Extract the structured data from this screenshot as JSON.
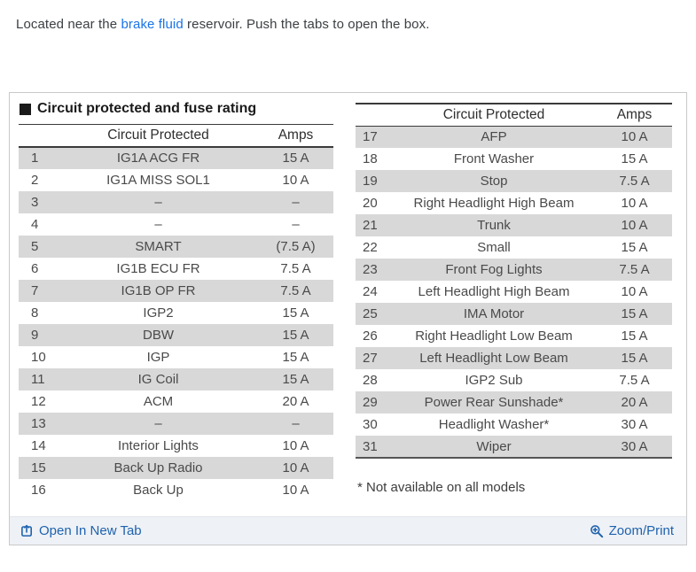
{
  "intro": {
    "text_before": "Located near the ",
    "link_text": "brake fluid",
    "text_after": " reservoir. Push the tabs to open the box."
  },
  "panel": {
    "title": "Circuit protected and fuse rating",
    "left_table": {
      "col_circuit": "Circuit Protected",
      "col_amps": "Amps",
      "rows": [
        {
          "num": "1",
          "circuit": "IG1A ACG FR",
          "amps": "15 A",
          "shaded": true
        },
        {
          "num": "2",
          "circuit": "IG1A MISS SOL1",
          "amps": "10 A",
          "shaded": false
        },
        {
          "num": "3",
          "circuit": "–",
          "amps": "–",
          "shaded": true
        },
        {
          "num": "4",
          "circuit": "–",
          "amps": "–",
          "shaded": false
        },
        {
          "num": "5",
          "circuit": "SMART",
          "amps": "(7.5 A)",
          "shaded": true
        },
        {
          "num": "6",
          "circuit": "IG1B ECU FR",
          "amps": "7.5 A",
          "shaded": false
        },
        {
          "num": "7",
          "circuit": "IG1B OP FR",
          "amps": "7.5 A",
          "shaded": true
        },
        {
          "num": "8",
          "circuit": "IGP2",
          "amps": "15 A",
          "shaded": false
        },
        {
          "num": "9",
          "circuit": "DBW",
          "amps": "15 A",
          "shaded": true
        },
        {
          "num": "10",
          "circuit": "IGP",
          "amps": "15 A",
          "shaded": false
        },
        {
          "num": "11",
          "circuit": "IG Coil",
          "amps": "15 A",
          "shaded": true
        },
        {
          "num": "12",
          "circuit": "ACM",
          "amps": "20 A",
          "shaded": false
        },
        {
          "num": "13",
          "circuit": "–",
          "amps": "–",
          "shaded": true
        },
        {
          "num": "14",
          "circuit": "Interior Lights",
          "amps": "10 A",
          "shaded": false
        },
        {
          "num": "15",
          "circuit": "Back Up Radio",
          "amps": "10 A",
          "shaded": true
        },
        {
          "num": "16",
          "circuit": "Back Up",
          "amps": "10 A",
          "shaded": false
        }
      ]
    },
    "right_table": {
      "col_circuit": "Circuit Protected",
      "col_amps": "Amps",
      "rows": [
        {
          "num": "17",
          "circuit": "AFP",
          "amps": "10 A",
          "shaded": true
        },
        {
          "num": "18",
          "circuit": "Front Washer",
          "amps": "15 A",
          "shaded": false
        },
        {
          "num": "19",
          "circuit": "Stop",
          "amps": "7.5 A",
          "shaded": true
        },
        {
          "num": "20",
          "circuit": "Right Headlight High Beam",
          "amps": "10 A",
          "shaded": false
        },
        {
          "num": "21",
          "circuit": "Trunk",
          "amps": "10 A",
          "shaded": true
        },
        {
          "num": "22",
          "circuit": "Small",
          "amps": "15 A",
          "shaded": false
        },
        {
          "num": "23",
          "circuit": "Front Fog Lights",
          "amps": "7.5 A",
          "shaded": true
        },
        {
          "num": "24",
          "circuit": "Left Headlight High Beam",
          "amps": "10 A",
          "shaded": false
        },
        {
          "num": "25",
          "circuit": "IMA Motor",
          "amps": "15 A",
          "shaded": true
        },
        {
          "num": "26",
          "circuit": "Right Headlight Low Beam",
          "amps": "15 A",
          "shaded": false
        },
        {
          "num": "27",
          "circuit": "Left Headlight Low Beam",
          "amps": "15 A",
          "shaded": true
        },
        {
          "num": "28",
          "circuit": "IGP2 Sub",
          "amps": "7.5 A",
          "shaded": false
        },
        {
          "num": "29",
          "circuit": "Power Rear Sunshade*",
          "amps": "20 A",
          "shaded": true
        },
        {
          "num": "30",
          "circuit": "Headlight Washer*",
          "amps": "30 A",
          "shaded": false
        },
        {
          "num": "31",
          "circuit": "Wiper",
          "amps": "30 A",
          "shaded": true
        }
      ]
    },
    "footnote": "* Not available on all models"
  },
  "footer": {
    "open_in_new_tab": "Open In New Tab",
    "zoom_print": "Zoom/Print"
  },
  "colors": {
    "intro_link_blue": "#1a73e8",
    "footer_link_blue": "#1e62ad",
    "row_shade_gray": "#d8d8d8",
    "rule_dark": "#3a3a3a",
    "box_border": "#c9c9c9",
    "footer_bg": "#eef1f6"
  }
}
